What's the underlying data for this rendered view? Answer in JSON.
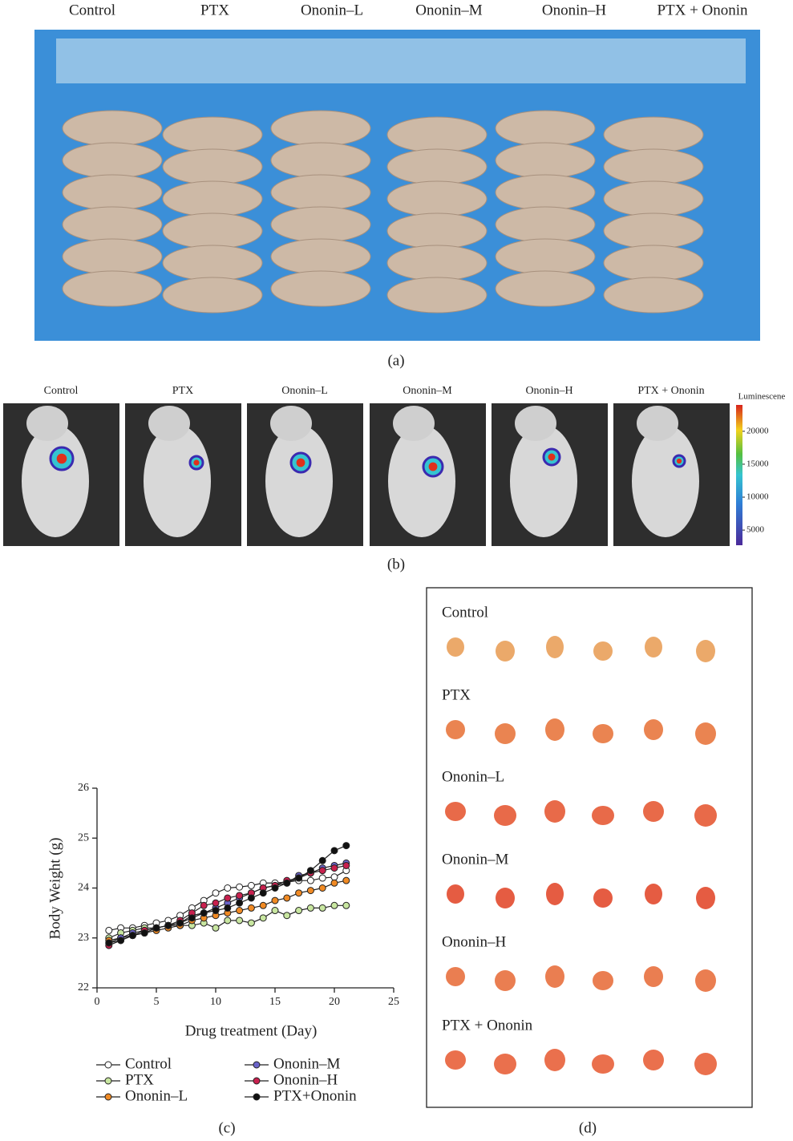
{
  "panel_a": {
    "caption": "(a)",
    "labels": [
      "Control",
      "PTX",
      "Ononin–L",
      "Ononin–M",
      "Ononin–H",
      "PTX + Ononin"
    ]
  },
  "panel_b": {
    "caption": "(b)",
    "labels": [
      "Control",
      "PTX",
      "Ononin–L",
      "Ononin–M",
      "Ononin–H",
      "PTX + Ononin"
    ],
    "colorbar": {
      "title": "Luminescene",
      "lim": [
        2700,
        24000
      ],
      "ticks": [
        5000,
        10000,
        15000,
        20000
      ]
    }
  },
  "panel_d": {
    "caption": "(d)",
    "labels": [
      "Control",
      "PTX",
      "Ononin–L",
      "Ononin–M",
      "Ononin–H",
      "PTX + Ononin"
    ]
  },
  "chart_data": {
    "type": "line",
    "caption": "(c)",
    "x_label": "Drug treatment (Day)",
    "y_label": "Body Weight (g)",
    "x": [
      1,
      2,
      3,
      4,
      5,
      6,
      7,
      8,
      9,
      10,
      11,
      12,
      13,
      14,
      15,
      16,
      17,
      18,
      19,
      20,
      21
    ],
    "xlim": [
      0,
      25
    ],
    "xticks": [
      0,
      5,
      10,
      15,
      20,
      25
    ],
    "ylim": [
      22,
      26
    ],
    "yticks": [
      22,
      23,
      24,
      25,
      26
    ],
    "series": [
      {
        "name": "Control",
        "color": "#ffffff",
        "values": [
          23.15,
          23.2,
          23.2,
          23.25,
          23.3,
          23.35,
          23.45,
          23.6,
          23.75,
          23.9,
          24.0,
          24.02,
          24.05,
          24.1,
          24.1,
          24.12,
          24.15,
          24.15,
          24.2,
          24.22,
          24.35
        ]
      },
      {
        "name": "PTX",
        "color": "#c8e6a0",
        "values": [
          23.0,
          23.1,
          23.15,
          23.2,
          23.2,
          23.25,
          23.25,
          23.25,
          23.3,
          23.2,
          23.35,
          23.35,
          23.3,
          23.4,
          23.55,
          23.45,
          23.55,
          23.6,
          23.6,
          23.65,
          23.65
        ]
      },
      {
        "name": "Ononin–L",
        "color": "#f08a24",
        "values": [
          22.95,
          23.0,
          23.05,
          23.1,
          23.15,
          23.2,
          23.25,
          23.35,
          23.4,
          23.45,
          23.5,
          23.55,
          23.6,
          23.65,
          23.75,
          23.8,
          23.9,
          23.95,
          24.0,
          24.1,
          24.15
        ]
      },
      {
        "name": "Ononin–M",
        "color": "#6a63c8",
        "values": [
          22.9,
          23.0,
          23.1,
          23.15,
          23.2,
          23.25,
          23.3,
          23.45,
          23.5,
          23.6,
          23.7,
          23.8,
          23.9,
          24.0,
          24.05,
          24.1,
          24.25,
          24.3,
          24.4,
          24.45,
          24.5
        ]
      },
      {
        "name": "Ononin–H",
        "color": "#c8204e",
        "values": [
          22.85,
          22.95,
          23.05,
          23.15,
          23.2,
          23.25,
          23.35,
          23.5,
          23.65,
          23.7,
          23.8,
          23.85,
          23.9,
          24.0,
          24.05,
          24.15,
          24.2,
          24.3,
          24.35,
          24.4,
          24.45
        ]
      },
      {
        "name": "PTX+Ononin",
        "color": "#111111",
        "values": [
          22.9,
          22.95,
          23.05,
          23.1,
          23.2,
          23.25,
          23.3,
          23.4,
          23.5,
          23.55,
          23.6,
          23.7,
          23.8,
          23.9,
          24.0,
          24.1,
          24.2,
          24.35,
          24.55,
          24.75,
          24.85
        ]
      }
    ]
  }
}
